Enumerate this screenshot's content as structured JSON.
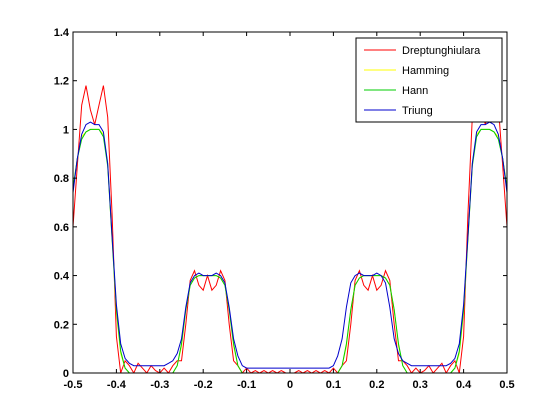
{
  "chart_data": {
    "type": "line",
    "title": "",
    "xlabel": "",
    "ylabel": "",
    "xlim": [
      -0.5,
      0.5
    ],
    "ylim": [
      0,
      1.4
    ],
    "xticks": [
      -0.5,
      -0.4,
      -0.3,
      -0.2,
      -0.1,
      0,
      0.1,
      0.2,
      0.3,
      0.4,
      0.5
    ],
    "xtick_labels": [
      "-0.5",
      "-0.4",
      "-0.3",
      "-0.2",
      "-0.1",
      "0",
      "0.1",
      "0.2",
      "0.3",
      "0.4",
      "0.5"
    ],
    "yticks": [
      0,
      0.2,
      0.4,
      0.6,
      0.8,
      1,
      1.2,
      1.4
    ],
    "ytick_labels": [
      "0",
      "0.2",
      "0.4",
      "0.6",
      "0.8",
      "1",
      "1.2",
      "1.4"
    ],
    "grid": false,
    "legend_position": "top-right",
    "series": [
      {
        "name": "Dreptunghiulara",
        "color": "#ff0000",
        "x": [
          -0.5,
          -0.49,
          -0.48,
          -0.47,
          -0.46,
          -0.45,
          -0.44,
          -0.43,
          -0.42,
          -0.41,
          -0.4,
          -0.39,
          -0.38,
          -0.37,
          -0.36,
          -0.35,
          -0.34,
          -0.33,
          -0.32,
          -0.31,
          -0.3,
          -0.29,
          -0.28,
          -0.27,
          -0.26,
          -0.25,
          -0.24,
          -0.23,
          -0.22,
          -0.21,
          -0.2,
          -0.19,
          -0.18,
          -0.17,
          -0.16,
          -0.15,
          -0.14,
          -0.13,
          -0.12,
          -0.11,
          -0.1,
          -0.09,
          -0.08,
          -0.07,
          -0.06,
          -0.05,
          -0.04,
          -0.03,
          -0.02,
          -0.01,
          0,
          0.01,
          0.02,
          0.03,
          0.04,
          0.05,
          0.06,
          0.07,
          0.08,
          0.09,
          0.1,
          0.11,
          0.12,
          0.13,
          0.14,
          0.15,
          0.16,
          0.17,
          0.18,
          0.19,
          0.2,
          0.21,
          0.22,
          0.23,
          0.24,
          0.25,
          0.26,
          0.27,
          0.28,
          0.29,
          0.3,
          0.31,
          0.32,
          0.33,
          0.34,
          0.35,
          0.36,
          0.37,
          0.38,
          0.39,
          0.4,
          0.41,
          0.42,
          0.43,
          0.44,
          0.45,
          0.46,
          0.47,
          0.48,
          0.49,
          0.5
        ],
        "y": [
          0.6,
          0.85,
          1.1,
          1.18,
          1.08,
          1.02,
          1.1,
          1.18,
          1.05,
          0.65,
          0.15,
          0.0,
          0.05,
          0.03,
          0.0,
          0.04,
          0.02,
          0.0,
          0.03,
          0.01,
          0.0,
          0.02,
          0.0,
          0.03,
          0.05,
          0.05,
          0.2,
          0.38,
          0.42,
          0.36,
          0.34,
          0.4,
          0.34,
          0.36,
          0.42,
          0.38,
          0.2,
          0.05,
          0.03,
          0.0,
          0.02,
          0.0,
          0.01,
          0.0,
          0.01,
          0.0,
          0.01,
          0.0,
          0.01,
          0.0,
          0.0,
          0.0,
          0.01,
          0.0,
          0.01,
          0.0,
          0.01,
          0.0,
          0.01,
          0.0,
          0.02,
          0.0,
          0.03,
          0.05,
          0.2,
          0.38,
          0.42,
          0.36,
          0.34,
          0.4,
          0.34,
          0.36,
          0.42,
          0.38,
          0.2,
          0.05,
          0.05,
          0.03,
          0.0,
          0.02,
          0.0,
          0.01,
          0.03,
          0.0,
          0.02,
          0.04,
          0.0,
          0.03,
          0.05,
          0.0,
          0.15,
          0.65,
          1.05,
          1.18,
          1.1,
          1.02,
          1.08,
          1.18,
          1.1,
          0.85,
          0.6
        ]
      },
      {
        "name": "Hamming",
        "color": "#ffff00",
        "x": [
          -0.5,
          -0.49,
          -0.48,
          -0.47,
          -0.46,
          -0.45,
          -0.44,
          -0.43,
          -0.42,
          -0.41,
          -0.4,
          -0.39,
          -0.38,
          -0.37,
          -0.36,
          -0.35,
          -0.34,
          -0.33,
          -0.32,
          -0.31,
          -0.3,
          -0.29,
          -0.28,
          -0.27,
          -0.26,
          -0.25,
          -0.24,
          -0.23,
          -0.22,
          -0.21,
          -0.2,
          -0.19,
          -0.18,
          -0.17,
          -0.16,
          -0.15,
          -0.14,
          -0.13,
          -0.12,
          -0.11,
          -0.1,
          -0.09,
          -0.08,
          -0.07,
          -0.06,
          -0.05,
          -0.04,
          -0.03,
          -0.02,
          -0.01,
          0,
          0.01,
          0.02,
          0.03,
          0.04,
          0.05,
          0.06,
          0.07,
          0.08,
          0.09,
          0.1,
          0.11,
          0.12,
          0.13,
          0.14,
          0.15,
          0.16,
          0.17,
          0.18,
          0.19,
          0.2,
          0.21,
          0.22,
          0.23,
          0.24,
          0.25,
          0.26,
          0.27,
          0.28,
          0.29,
          0.3,
          0.31,
          0.32,
          0.33,
          0.34,
          0.35,
          0.36,
          0.37,
          0.38,
          0.39,
          0.4,
          0.41,
          0.42,
          0.43,
          0.44,
          0.45,
          0.46,
          0.47,
          0.48,
          0.49,
          0.5
        ],
        "y": [
          0.75,
          0.88,
          0.97,
          0.99,
          1.0,
          1.0,
          1.0,
          0.98,
          0.86,
          0.55,
          0.25,
          0.08,
          0.02,
          0.0,
          0.0,
          0.0,
          0.0,
          0.0,
          0.0,
          0.0,
          0.0,
          0.0,
          0.0,
          0.0,
          0.03,
          0.11,
          0.26,
          0.36,
          0.39,
          0.4,
          0.4,
          0.4,
          0.4,
          0.4,
          0.39,
          0.36,
          0.26,
          0.11,
          0.03,
          0.0,
          0.0,
          0.0,
          0.0,
          0.0,
          0.0,
          0.0,
          0.0,
          0.0,
          0.0,
          0.0,
          0.0,
          0.0,
          0.0,
          0.0,
          0.0,
          0.0,
          0.0,
          0.0,
          0.0,
          0.0,
          0.0,
          0.0,
          0.03,
          0.11,
          0.26,
          0.36,
          0.39,
          0.4,
          0.4,
          0.4,
          0.4,
          0.4,
          0.39,
          0.36,
          0.26,
          0.11,
          0.03,
          0.0,
          0.0,
          0.0,
          0.0,
          0.0,
          0.0,
          0.0,
          0.0,
          0.0,
          0.0,
          0.0,
          0.02,
          0.08,
          0.25,
          0.55,
          0.86,
          0.98,
          1.0,
          1.0,
          1.0,
          0.99,
          0.97,
          0.88,
          0.75
        ]
      },
      {
        "name": "Hann",
        "color": "#00cc00",
        "x": [
          -0.5,
          -0.49,
          -0.48,
          -0.47,
          -0.46,
          -0.45,
          -0.44,
          -0.43,
          -0.42,
          -0.41,
          -0.4,
          -0.39,
          -0.38,
          -0.37,
          -0.36,
          -0.35,
          -0.34,
          -0.33,
          -0.32,
          -0.31,
          -0.3,
          -0.29,
          -0.28,
          -0.27,
          -0.26,
          -0.25,
          -0.24,
          -0.23,
          -0.22,
          -0.21,
          -0.2,
          -0.19,
          -0.18,
          -0.17,
          -0.16,
          -0.15,
          -0.14,
          -0.13,
          -0.12,
          -0.11,
          -0.1,
          -0.09,
          -0.08,
          -0.07,
          -0.06,
          -0.05,
          -0.04,
          -0.03,
          -0.02,
          -0.01,
          0,
          0.01,
          0.02,
          0.03,
          0.04,
          0.05,
          0.06,
          0.07,
          0.08,
          0.09,
          0.1,
          0.11,
          0.12,
          0.13,
          0.14,
          0.15,
          0.16,
          0.17,
          0.18,
          0.19,
          0.2,
          0.21,
          0.22,
          0.23,
          0.24,
          0.25,
          0.26,
          0.27,
          0.28,
          0.29,
          0.3,
          0.31,
          0.32,
          0.33,
          0.34,
          0.35,
          0.36,
          0.37,
          0.38,
          0.39,
          0.4,
          0.41,
          0.42,
          0.43,
          0.44,
          0.45,
          0.46,
          0.47,
          0.48,
          0.49,
          0.5
        ],
        "y": [
          0.76,
          0.88,
          0.96,
          0.99,
          1.0,
          1.0,
          1.0,
          0.97,
          0.85,
          0.55,
          0.26,
          0.09,
          0.02,
          0.0,
          0.0,
          0.0,
          0.0,
          0.0,
          0.0,
          0.0,
          0.0,
          0.0,
          0.0,
          0.0,
          0.03,
          0.12,
          0.26,
          0.36,
          0.39,
          0.4,
          0.4,
          0.4,
          0.4,
          0.4,
          0.39,
          0.36,
          0.26,
          0.12,
          0.03,
          0.0,
          0.0,
          0.0,
          0.0,
          0.0,
          0.0,
          0.0,
          0.0,
          0.0,
          0.0,
          0.0,
          0.0,
          0.0,
          0.0,
          0.0,
          0.0,
          0.0,
          0.0,
          0.0,
          0.0,
          0.0,
          0.0,
          0.0,
          0.03,
          0.12,
          0.26,
          0.36,
          0.39,
          0.4,
          0.4,
          0.4,
          0.4,
          0.4,
          0.39,
          0.36,
          0.26,
          0.12,
          0.03,
          0.0,
          0.0,
          0.0,
          0.0,
          0.0,
          0.0,
          0.0,
          0.0,
          0.0,
          0.0,
          0.0,
          0.02,
          0.09,
          0.26,
          0.55,
          0.85,
          0.97,
          1.0,
          1.0,
          1.0,
          0.99,
          0.96,
          0.88,
          0.76
        ]
      },
      {
        "name": "Triung",
        "color": "#0000cc",
        "x": [
          -0.5,
          -0.49,
          -0.48,
          -0.47,
          -0.46,
          -0.45,
          -0.44,
          -0.43,
          -0.42,
          -0.41,
          -0.4,
          -0.39,
          -0.38,
          -0.37,
          -0.36,
          -0.35,
          -0.34,
          -0.33,
          -0.32,
          -0.31,
          -0.3,
          -0.29,
          -0.28,
          -0.27,
          -0.26,
          -0.25,
          -0.24,
          -0.23,
          -0.22,
          -0.21,
          -0.2,
          -0.19,
          -0.18,
          -0.17,
          -0.16,
          -0.15,
          -0.14,
          -0.13,
          -0.12,
          -0.11,
          -0.1,
          -0.09,
          -0.08,
          -0.07,
          -0.06,
          -0.05,
          -0.04,
          -0.03,
          -0.02,
          -0.01,
          0,
          0.01,
          0.02,
          0.03,
          0.04,
          0.05,
          0.06,
          0.07,
          0.08,
          0.09,
          0.1,
          0.11,
          0.12,
          0.13,
          0.14,
          0.15,
          0.16,
          0.17,
          0.18,
          0.19,
          0.2,
          0.21,
          0.22,
          0.23,
          0.24,
          0.25,
          0.26,
          0.27,
          0.28,
          0.29,
          0.3,
          0.31,
          0.32,
          0.33,
          0.34,
          0.35,
          0.36,
          0.37,
          0.38,
          0.39,
          0.4,
          0.41,
          0.42,
          0.43,
          0.44,
          0.45,
          0.46,
          0.47,
          0.48,
          0.49,
          0.5
        ],
        "y": [
          0.74,
          0.88,
          0.98,
          1.02,
          1.03,
          1.02,
          1.02,
          0.99,
          0.86,
          0.56,
          0.28,
          0.12,
          0.06,
          0.04,
          0.03,
          0.03,
          0.03,
          0.03,
          0.03,
          0.03,
          0.03,
          0.03,
          0.04,
          0.05,
          0.08,
          0.14,
          0.27,
          0.37,
          0.4,
          0.41,
          0.4,
          0.4,
          0.4,
          0.41,
          0.4,
          0.37,
          0.27,
          0.14,
          0.07,
          0.03,
          0.02,
          0.02,
          0.02,
          0.02,
          0.02,
          0.02,
          0.02,
          0.02,
          0.02,
          0.02,
          0.02,
          0.02,
          0.02,
          0.02,
          0.02,
          0.02,
          0.02,
          0.02,
          0.02,
          0.02,
          0.03,
          0.07,
          0.14,
          0.27,
          0.37,
          0.4,
          0.41,
          0.4,
          0.4,
          0.4,
          0.41,
          0.4,
          0.37,
          0.27,
          0.14,
          0.08,
          0.05,
          0.04,
          0.03,
          0.03,
          0.03,
          0.03,
          0.03,
          0.03,
          0.03,
          0.03,
          0.03,
          0.04,
          0.06,
          0.12,
          0.28,
          0.56,
          0.86,
          0.99,
          1.02,
          1.02,
          1.03,
          1.02,
          0.98,
          0.88,
          0.74
        ]
      }
    ]
  }
}
